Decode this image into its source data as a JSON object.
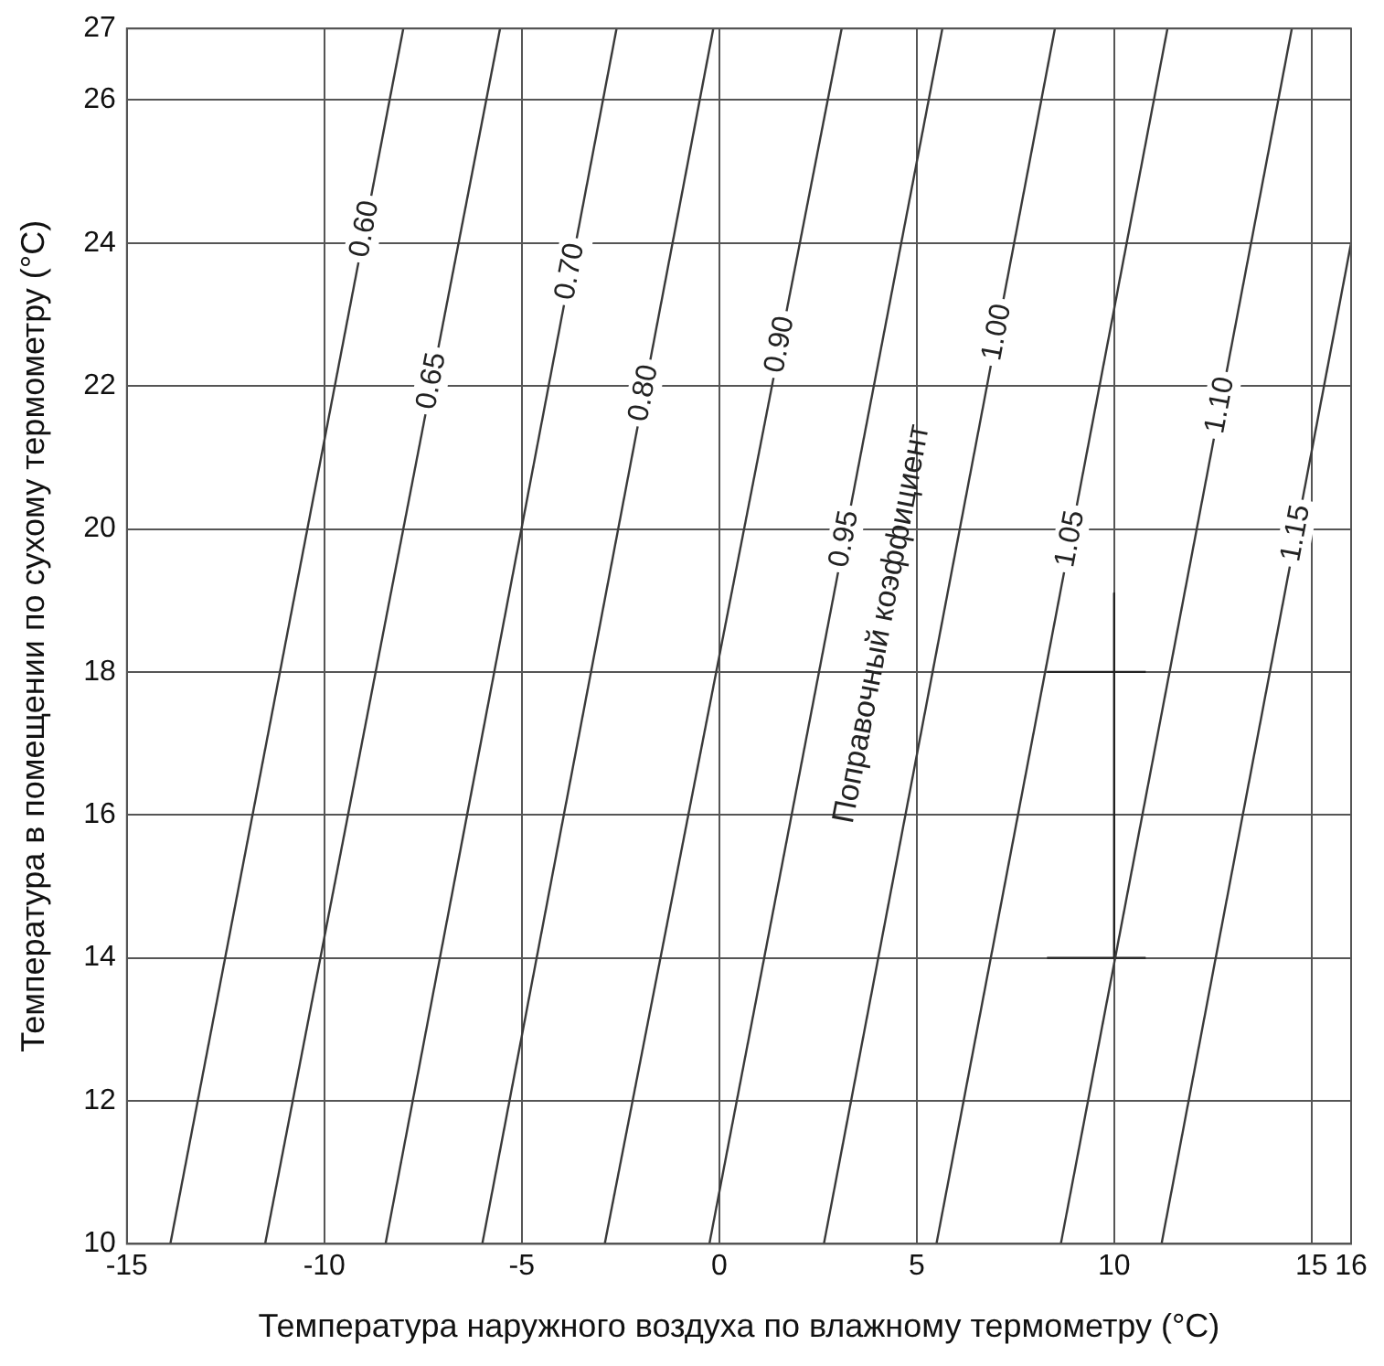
{
  "chart_data": {
    "type": "line",
    "xlabel": "Температура наружного воздуха по влажному термометру (°C)",
    "ylabel": "Температура в помещении по сухому термометру (°C)",
    "xlim": [
      -15,
      16
    ],
    "ylim": [
      10,
      27
    ],
    "xticks": [
      -15,
      -10,
      -5,
      0,
      5,
      10,
      15,
      16
    ],
    "yticks": [
      10,
      12,
      14,
      16,
      18,
      20,
      22,
      24,
      26,
      27
    ],
    "grid": true,
    "marker": "none",
    "series": [
      {
        "name": "0.60",
        "color": "#3a3a3a",
        "x": [
          -13.9,
          -8.0
        ],
        "values": [
          10,
          27
        ]
      },
      {
        "name": "0.65",
        "color": "#3a3a3a",
        "x": [
          -11.5,
          -5.55
        ],
        "values": [
          10,
          27
        ]
      },
      {
        "name": "0.70",
        "color": "#3a3a3a",
        "x": [
          -8.45,
          -2.6
        ],
        "values": [
          10,
          27
        ]
      },
      {
        "name": "0.80",
        "color": "#3a3a3a",
        "x": [
          -6.0,
          -0.15
        ],
        "values": [
          10,
          27
        ]
      },
      {
        "name": "0.90",
        "color": "#3a3a3a",
        "x": [
          -2.9,
          3.1
        ],
        "values": [
          10,
          27
        ]
      },
      {
        "name": "0.95",
        "color": "#3a3a3a",
        "x": [
          -0.25,
          5.65
        ],
        "values": [
          10,
          27
        ]
      },
      {
        "name": "1.00",
        "color": "#3a3a3a",
        "x": [
          2.65,
          8.5
        ],
        "values": [
          10,
          27
        ]
      },
      {
        "name": "1.05",
        "color": "#3a3a3a",
        "x": [
          5.5,
          11.35
        ],
        "values": [
          10,
          27
        ]
      },
      {
        "name": "1.10",
        "color": "#3a3a3a",
        "x": [
          8.65,
          14.5
        ],
        "values": [
          10,
          27
        ]
      },
      {
        "name": "1.15",
        "color": "#3a3a3a",
        "x": [
          11.2,
          16.0
        ],
        "values": [
          10,
          24
        ]
      },
      {
        "color": "#222222",
        "x": [
          10,
          10
        ],
        "values": [
          19.1,
          14
        ]
      },
      {
        "color": "#222222",
        "x": [
          8.3,
          10.8
        ],
        "values": [
          18,
          18
        ]
      },
      {
        "color": "#222222",
        "x": [
          8.3,
          10.8
        ],
        "values": [
          14,
          14
        ]
      }
    ],
    "annotations": [
      "Поправочный коэффициент"
    ]
  }
}
